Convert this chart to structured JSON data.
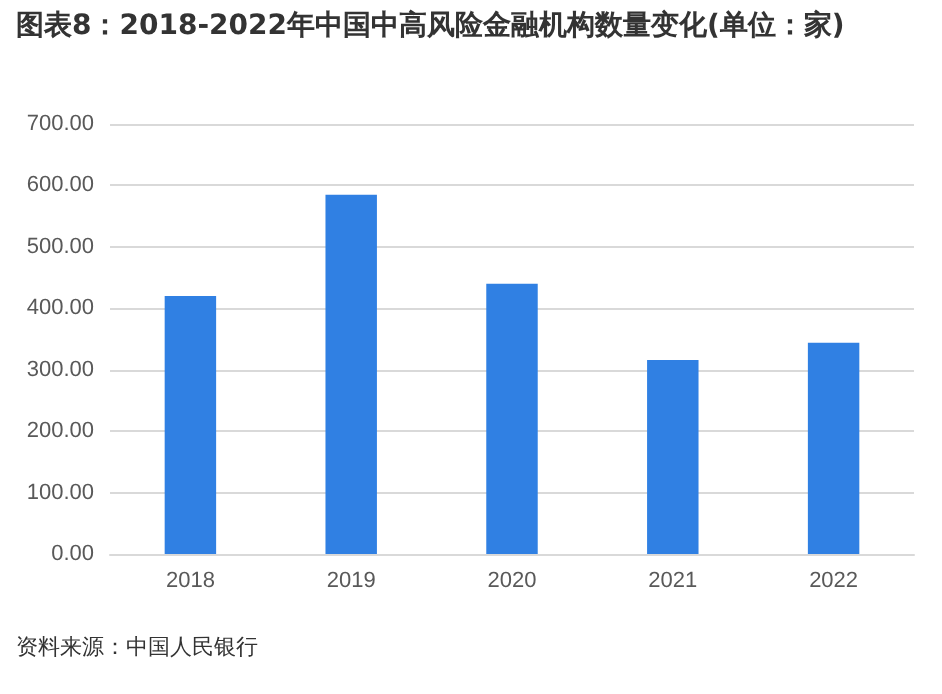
{
  "chart_data": {
    "type": "bar",
    "title": "图表8：2018-2022年中国中高风险金融机构数量变化(单位：家)",
    "categories": [
      "2018",
      "2019",
      "2020",
      "2021",
      "2022"
    ],
    "values": [
      420,
      585,
      440,
      316,
      344
    ],
    "color": "#3080e3",
    "ylim": [
      0,
      700
    ],
    "yticks": [
      {
        "value": 0,
        "label": "0.00"
      },
      {
        "value": 100,
        "label": "100.00"
      },
      {
        "value": 200,
        "label": "200.00"
      },
      {
        "value": 300,
        "label": "300.00"
      },
      {
        "value": 400,
        "label": "400.00"
      },
      {
        "value": 500,
        "label": "500.00"
      },
      {
        "value": 600,
        "label": "600.00"
      },
      {
        "value": 700,
        "label": "700.00"
      }
    ],
    "grid": "y",
    "annotations": [
      "资料来源：中国人民银行"
    ]
  }
}
